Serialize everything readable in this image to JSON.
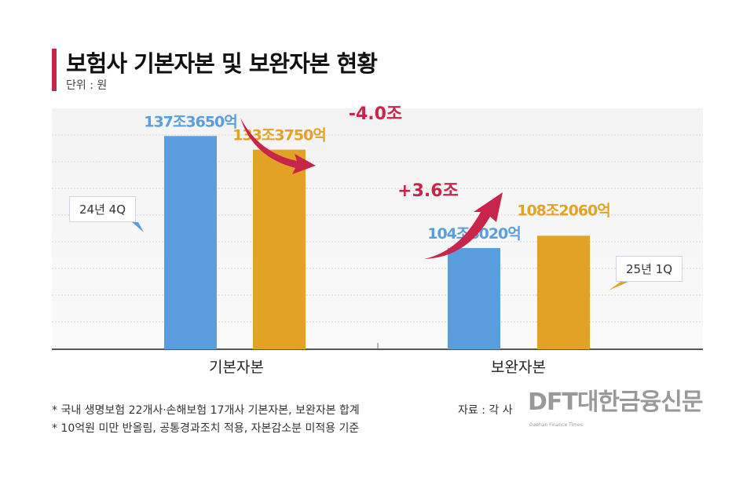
{
  "header": {
    "title": "보험사 기본자본 및 보완자본 현황",
    "unit": "단위 : 원"
  },
  "chart_data": {
    "type": "bar",
    "title": "보험사 기본자본 및 보완자본 현황",
    "categories": [
      "기본자본",
      "보완자본"
    ],
    "series": [
      {
        "name": "24년 4Q",
        "color": "#5a9edd",
        "values": [
          137.365,
          104.602
        ],
        "labels": [
          "137조3650억",
          "104조6020억"
        ]
      },
      {
        "name": "25년 1Q",
        "color": "#e2a226",
        "values": [
          133.375,
          108.206
        ],
        "labels": [
          "133조3750억",
          "108조2060억"
        ]
      }
    ],
    "unit": "조 원",
    "ylim": [
      75,
      145
    ],
    "grid": true,
    "annotations": [
      {
        "text": "-4.0조",
        "color": "#c8254a"
      },
      {
        "text": "+3.6조",
        "color": "#c8254a"
      }
    ]
  },
  "footnotes": [
    "* 국내 생명보험 22개사·손해보험 17개사 기본자본, 보완자본 합계",
    "* 10억원 미만 반올림, 공통경과조치 적용, 자본감소분 미적용 기준"
  ],
  "source": "자료 : 각 사",
  "logo": {
    "text": "DFT대한금융신문",
    "sub": "Daehan Finance Times"
  }
}
